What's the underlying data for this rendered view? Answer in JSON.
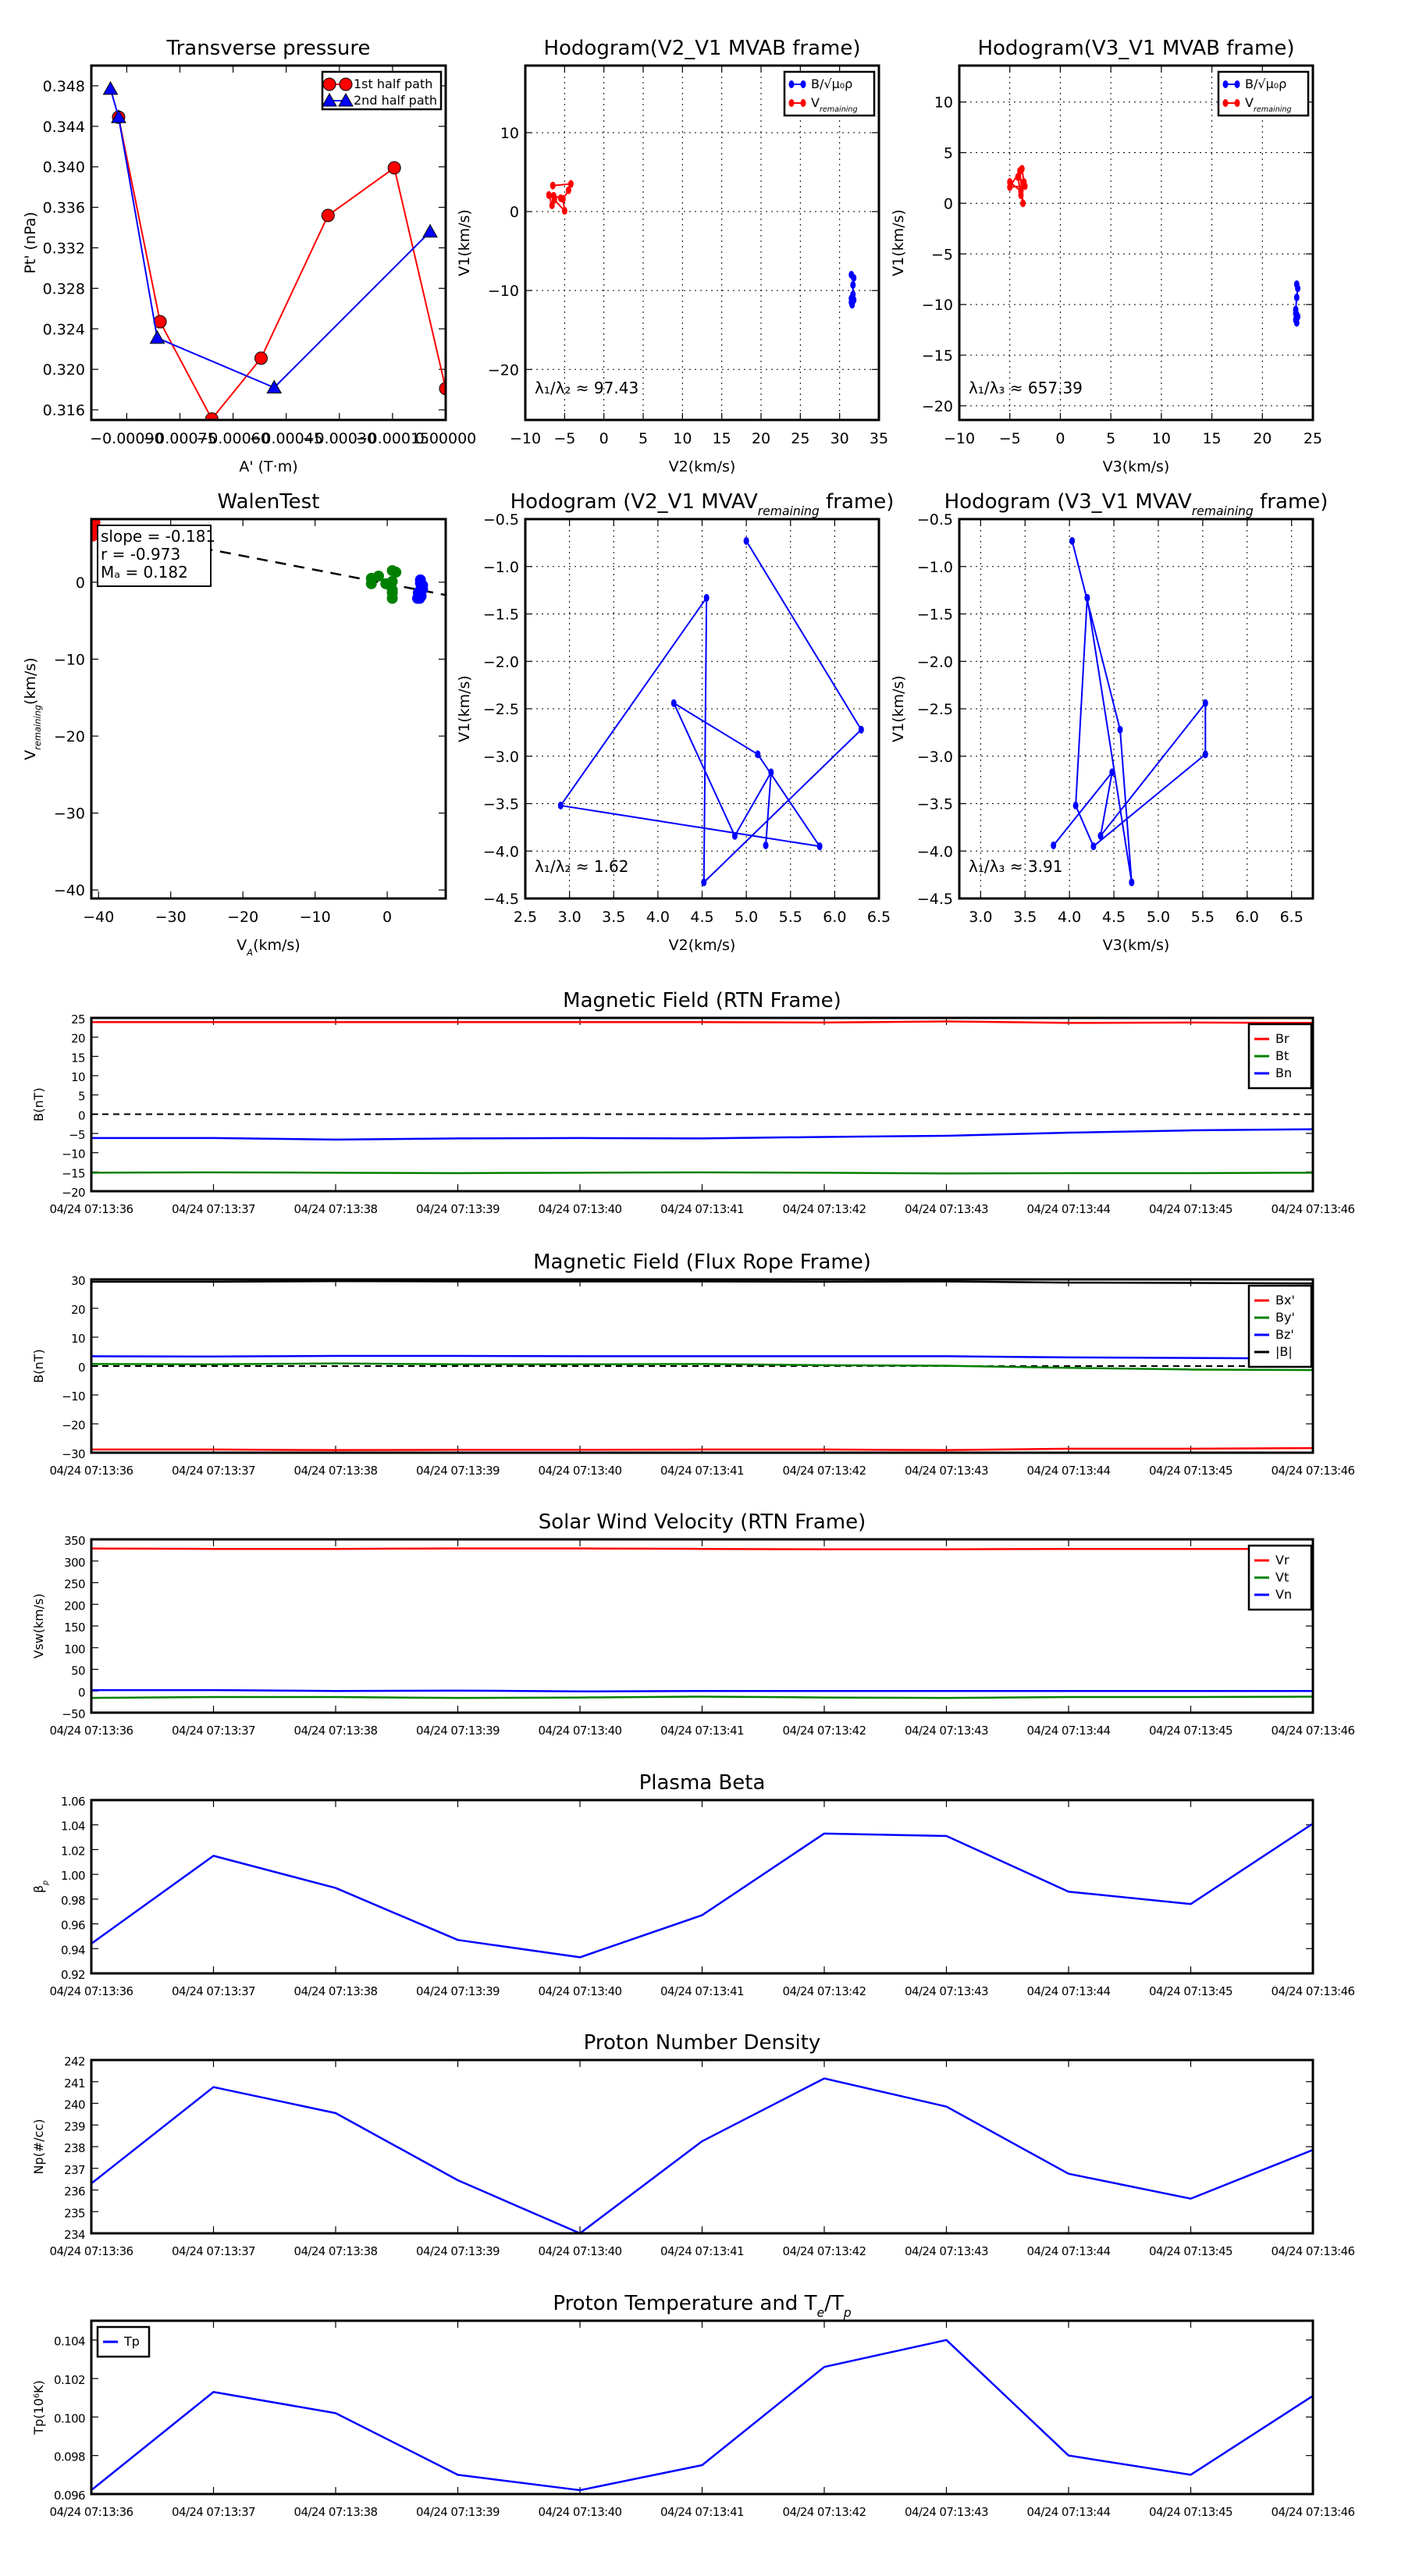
{
  "chart_data": [
    {
      "type": "line",
      "title": [
        {
          "t": "Transverse pressure"
        }
      ],
      "xlabel": [
        {
          "t": "A' (T·m)"
        }
      ],
      "ylabel": [
        {
          "t": "Pt' (nPa)"
        }
      ],
      "xlim": [
        -0.001,
        0.0
      ],
      "ylim": [
        0.315,
        0.35
      ],
      "xticks": [
        "−0.00090",
        "−0.00075",
        "−0.00060",
        "−0.00045",
        "−0.00030",
        "−0.00015",
        "0.00000"
      ],
      "yticks": [
        "0.316",
        "0.320",
        "0.324",
        "0.328",
        "0.332",
        "0.336",
        "0.340",
        "0.344",
        "0.348"
      ],
      "grid": false,
      "legend": {
        "loc": "upper right"
      },
      "series": [
        {
          "name": "1st half path",
          "color": "#ff0000",
          "marker": "circle",
          "x": [
            -0.000923,
            -0.000806,
            -0.00066,
            -0.000521,
            -0.000332,
            -0.000145,
            0.0
          ],
          "y": [
            0.3449,
            0.3247,
            0.3151,
            0.3211,
            0.3352,
            0.3399,
            0.3181
          ]
        },
        {
          "name": "2nd half path",
          "color": "#0000ff",
          "marker": "triangle",
          "x": [
            -0.000946,
            -0.000923,
            -0.000814,
            -0.000484,
            -4.4e-05
          ],
          "y": [
            0.3477,
            0.3449,
            0.3231,
            0.3182,
            0.3336
          ]
        }
      ]
    },
    {
      "type": "line",
      "title": [
        {
          "t": "Hodogram(V2_V1 MVAB frame)"
        }
      ],
      "xlabel": [
        {
          "t": "V2(km/s)"
        }
      ],
      "ylabel": [
        {
          "t": "V1(km/s)"
        }
      ],
      "xlim": [
        -10,
        35
      ],
      "ylim": [
        -26.4,
        18.5
      ],
      "xticks": [
        "−10",
        "−5",
        "0",
        "5",
        "10",
        "15",
        "20",
        "25",
        "30",
        "35"
      ],
      "yticks": [
        "−20",
        "−10",
        "0",
        "10"
      ],
      "grid": true,
      "legend": {
        "loc": "upper right"
      },
      "annotation": "λ₁/λ₂ ≈ 97.43",
      "series": [
        {
          "name": [
            {
              "t": "B/√μ₀ρ"
            }
          ],
          "color": "#0000ff",
          "marker": "dot",
          "x": [
            31.5,
            31.8,
            31.7,
            31.7,
            31.5,
            31.5,
            31.6,
            31.8,
            31.6,
            31.7
          ],
          "y": [
            -8.0,
            -8.4,
            -9.3,
            -10.5,
            -11.0,
            -11.5,
            -11.8,
            -11.2,
            -10.9,
            -11.3
          ]
        },
        {
          "name": [
            {
              "t": "V"
            },
            {
              "t": "remaining",
              "sub": true
            }
          ],
          "color": "#ff0000",
          "marker": "dot",
          "x": [
            -6.5,
            -4.2,
            -4.5,
            -5.2,
            -5.0,
            -6.3,
            -7.0,
            -6.6,
            -6.4,
            -5.5
          ],
          "y": [
            3.3,
            3.5,
            2.7,
            1.6,
            0.1,
            1.5,
            2.1,
            0.8,
            2.0,
            1.7
          ]
        }
      ]
    },
    {
      "type": "line",
      "title": [
        {
          "t": "Hodogram(V3_V1 MVAB frame)"
        }
      ],
      "xlabel": [
        {
          "t": "V3(km/s)"
        }
      ],
      "ylabel": [
        {
          "t": "V1(km/s)"
        }
      ],
      "xlim": [
        -10,
        25
      ],
      "ylim": [
        -21.4,
        13.6
      ],
      "xticks": [
        "−10",
        "−5",
        "0",
        "5",
        "10",
        "15",
        "20",
        "25"
      ],
      "yticks": [
        "−20",
        "−15",
        "−10",
        "−5",
        "0",
        "5",
        "10"
      ],
      "grid": true,
      "legend": {
        "loc": "upper right"
      },
      "annotation": "λ₁/λ₃ ≈ 657.39",
      "series": [
        {
          "name": [
            {
              "t": "B/√μ₀ρ"
            }
          ],
          "color": "#0000ff",
          "marker": "dot",
          "x": [
            23.4,
            23.5,
            23.4,
            23.3,
            23.4,
            23.3,
            23.4,
            23.5,
            23.3,
            23.4
          ],
          "y": [
            -8.0,
            -8.4,
            -9.3,
            -10.5,
            -11.0,
            -11.5,
            -11.8,
            -11.2,
            -10.9,
            -11.3
          ]
        },
        {
          "name": [
            {
              "t": "V"
            },
            {
              "t": "remaining",
              "sub": true
            }
          ],
          "color": "#ff0000",
          "marker": "dot",
          "x": [
            -3.8,
            -3.6,
            -3.9,
            -4.2,
            -3.5,
            -5.0,
            -4.0,
            -3.7,
            -3.9,
            -5.0
          ],
          "y": [
            3.4,
            2.1,
            0.8,
            2.6,
            1.7,
            1.6,
            3.2,
            0.0,
            1.2,
            2.1
          ]
        }
      ]
    },
    {
      "type": "scatter",
      "title": [
        {
          "t": "WalenTest"
        }
      ],
      "xlabel": [
        {
          "t": "V"
        },
        {
          "t": "A",
          "sub": true
        },
        {
          "t": "(km/s)"
        }
      ],
      "ylabel": [
        {
          "t": "V"
        },
        {
          "t": "remaining",
          "sub": true
        },
        {
          "t": "(km/s)"
        }
      ],
      "xlim": [
        -41.0,
        8.1
      ],
      "ylim": [
        -41.1,
        8.2
      ],
      "xticks": [
        "−40",
        "−30",
        "−20",
        "−10",
        "0"
      ],
      "yticks": [
        "−40",
        "−30",
        "−20",
        "−10",
        "0"
      ],
      "grid": false,
      "textbox": [
        "slope = -0.181",
        "r = -0.973",
        "Mₐ = 0.182"
      ],
      "fit": {
        "slope": -0.181,
        "intercept": -0.2
      },
      "series": [
        {
          "name": "red",
          "color": "#ff0000",
          "marker": "bigdot",
          "x": [
            -40.6,
            -40.3,
            -40.8,
            -40.5
          ],
          "y": [
            7.5,
            6.5,
            6.0,
            7.8
          ]
        },
        {
          "name": "green",
          "color": "#008000",
          "marker": "bigdot",
          "x": [
            -2.2,
            -1.2,
            -2.2,
            0.7,
            -0.2,
            0.7,
            1.2,
            0.7,
            0.7,
            0.7
          ],
          "y": [
            0.5,
            0.8,
            -0.2,
            1.5,
            -0.2,
            0.1,
            1.3,
            -1.0,
            -2.1,
            -1.4
          ]
        },
        {
          "name": "blue",
          "color": "#0000ff",
          "marker": "bigdot",
          "x": [
            4.6,
            4.6,
            4.3,
            4.9,
            4.6,
            4.5,
            4.9,
            4.2,
            4.7
          ],
          "y": [
            0.3,
            -0.1,
            -1.4,
            -0.4,
            -1.0,
            -2.1,
            -0.9,
            -2.1,
            -1.8
          ]
        }
      ]
    },
    {
      "type": "line",
      "title": [
        {
          "t": "Hodogram (V2_V1 MVAV"
        },
        {
          "t": "remaining",
          "sub": true
        },
        {
          "t": " frame)"
        }
      ],
      "xlabel": [
        {
          "t": "V2(km/s)"
        }
      ],
      "ylabel": [
        {
          "t": "V1(km/s)"
        }
      ],
      "xlim": [
        2.5,
        6.5
      ],
      "ylim": [
        -4.5,
        -0.5
      ],
      "xticks": [
        "2.5",
        "3.0",
        "3.5",
        "4.0",
        "4.5",
        "5.0",
        "5.5",
        "6.0",
        "6.5"
      ],
      "yticks": [
        "−4.5",
        "−4.0",
        "−3.5",
        "−3.0",
        "−2.5",
        "−2.0",
        "−1.5",
        "−1.0",
        "−0.5"
      ],
      "grid": true,
      "annotation": "λ₁/λ₂ ≈ 1.62",
      "series": [
        {
          "name": "V",
          "color": "#0000ff",
          "marker": "dot",
          "x": [
            5.0,
            6.3,
            4.52,
            4.55,
            2.9,
            5.83,
            5.13,
            4.18,
            4.87,
            5.28,
            5.22
          ],
          "y": [
            -0.73,
            -2.72,
            -4.33,
            -1.33,
            -3.52,
            -3.95,
            -2.98,
            -2.44,
            -3.84,
            -3.17,
            -3.94
          ]
        }
      ]
    },
    {
      "type": "line",
      "title": [
        {
          "t": "Hodogram (V3_V1 MVAV"
        },
        {
          "t": "remaining",
          "sub": true
        },
        {
          "t": " frame)"
        }
      ],
      "xlabel": [
        {
          "t": "V3(km/s)"
        }
      ],
      "ylabel": [
        {
          "t": "V1(km/s)"
        }
      ],
      "xlim": [
        2.76,
        6.74
      ],
      "ylim": [
        -4.5,
        -0.5
      ],
      "xticks": [
        "3.0",
        "3.5",
        "4.0",
        "4.5",
        "5.0",
        "5.5",
        "6.0",
        "6.5"
      ],
      "yticks": [
        "−4.5",
        "−4.0",
        "−3.5",
        "−3.0",
        "−2.5",
        "−2.0",
        "−1.5",
        "−1.0",
        "−0.5"
      ],
      "grid": true,
      "annotation": "λ₁/λ₃ ≈ 3.91",
      "series": [
        {
          "name": "V",
          "color": "#0000ff",
          "marker": "dot",
          "x": [
            4.03,
            4.57,
            4.7,
            4.2,
            4.07,
            4.27,
            5.53,
            5.53,
            4.35,
            4.48,
            3.82
          ],
          "y": [
            -0.73,
            -2.72,
            -4.33,
            -1.33,
            -3.52,
            -3.95,
            -2.98,
            -2.44,
            -3.84,
            -3.17,
            -3.94
          ]
        }
      ]
    },
    {
      "type": "line",
      "title": [
        {
          "t": "Magnetic Field (RTN Frame)"
        }
      ],
      "ylabel": [
        {
          "t": "B(nT)"
        }
      ],
      "categories": [
        "04/24 07:13:36",
        "04/24 07:13:37",
        "04/24 07:13:38",
        "04/24 07:13:39",
        "04/24 07:13:40",
        "04/24 07:13:41",
        "04/24 07:13:42",
        "04/24 07:13:43",
        "04/24 07:13:44",
        "04/24 07:13:45",
        "04/24 07:13:46"
      ],
      "ylim": [
        -20,
        25
      ],
      "yticks": [
        "−20",
        "−15",
        "−10",
        "−5",
        "0",
        "5",
        "10",
        "15",
        "20",
        "25"
      ],
      "zero_line": true,
      "legend": {
        "loc": "upper right"
      },
      "series": [
        {
          "name": "Br",
          "color": "#ff0000",
          "y": [
            23.9,
            23.9,
            23.9,
            23.9,
            23.9,
            23.9,
            23.8,
            24.1,
            23.7,
            23.8,
            23.7
          ]
        },
        {
          "name": "Bt",
          "color": "#008000",
          "y": [
            -15.2,
            -15.1,
            -15.2,
            -15.3,
            -15.2,
            -15.1,
            -15.2,
            -15.4,
            -15.3,
            -15.3,
            -15.2
          ]
        },
        {
          "name": "Bn",
          "color": "#0000ff",
          "y": [
            -6.2,
            -6.2,
            -6.6,
            -6.3,
            -6.2,
            -6.3,
            -5.9,
            -5.6,
            -4.8,
            -4.2,
            -3.9
          ]
        }
      ]
    },
    {
      "type": "line",
      "title": [
        {
          "t": "Magnetic Field (Flux Rope Frame)"
        }
      ],
      "ylabel": [
        {
          "t": "B(nT)"
        }
      ],
      "categories": [
        "04/24 07:13:36",
        "04/24 07:13:37",
        "04/24 07:13:38",
        "04/24 07:13:39",
        "04/24 07:13:40",
        "04/24 07:13:41",
        "04/24 07:13:42",
        "04/24 07:13:43",
        "04/24 07:13:44",
        "04/24 07:13:45",
        "04/24 07:13:46"
      ],
      "ylim": [
        -30,
        30
      ],
      "yticks": [
        "−30",
        "−20",
        "−10",
        "0",
        "10",
        "20",
        "30"
      ],
      "zero_line": true,
      "legend": {
        "loc": "upper right"
      },
      "series": [
        {
          "name": "Bx'",
          "color": "#ff0000",
          "y": [
            -28.9,
            -28.9,
            -29.1,
            -29.0,
            -29.0,
            -28.9,
            -28.9,
            -29.1,
            -28.6,
            -28.6,
            -28.4
          ]
        },
        {
          "name": "By'",
          "color": "#008000",
          "y": [
            0.7,
            0.6,
            0.9,
            0.6,
            0.6,
            0.7,
            0.3,
            0.1,
            -0.6,
            -1.2,
            -1.4
          ]
        },
        {
          "name": "Bz'",
          "color": "#0000ff",
          "y": [
            3.4,
            3.3,
            3.5,
            3.5,
            3.4,
            3.4,
            3.4,
            3.4,
            3.0,
            2.8,
            2.6
          ]
        },
        {
          "name": "|B|",
          "color": "#000000",
          "y": [
            29.2,
            29.2,
            29.4,
            29.3,
            29.3,
            29.3,
            29.2,
            29.3,
            28.9,
            28.8,
            28.6
          ]
        }
      ]
    },
    {
      "type": "line",
      "title": [
        {
          "t": "Solar Wind Velocity (RTN Frame)"
        }
      ],
      "ylabel": [
        {
          "t": "Vsw(km/s)"
        }
      ],
      "categories": [
        "04/24 07:13:36",
        "04/24 07:13:37",
        "04/24 07:13:38",
        "04/24 07:13:39",
        "04/24 07:13:40",
        "04/24 07:13:41",
        "04/24 07:13:42",
        "04/24 07:13:43",
        "04/24 07:13:44",
        "04/24 07:13:45",
        "04/24 07:13:46"
      ],
      "ylim": [
        -50,
        350
      ],
      "yticks": [
        "−50",
        "0",
        "50",
        "100",
        "150",
        "200",
        "250",
        "300",
        "350"
      ],
      "legend": {
        "loc": "upper right"
      },
      "series": [
        {
          "name": "Vr",
          "color": "#ff0000",
          "y": [
            329,
            328,
            328,
            329,
            329,
            328,
            327,
            327,
            328,
            328,
            328
          ]
        },
        {
          "name": "Vt",
          "color": "#008000",
          "y": [
            -16,
            -14,
            -14,
            -16,
            -15,
            -13,
            -15,
            -16,
            -14,
            -14,
            -13
          ]
        },
        {
          "name": "Vn",
          "color": "#0000ff",
          "y": [
            2,
            2,
            0,
            1,
            -1,
            0,
            0,
            0,
            0,
            0,
            0
          ]
        }
      ]
    },
    {
      "type": "line",
      "title": [
        {
          "t": "Plasma Beta"
        }
      ],
      "ylabel": [
        {
          "t": "β"
        },
        {
          "t": "p",
          "sub": true
        }
      ],
      "categories": [
        "04/24 07:13:36",
        "04/24 07:13:37",
        "04/24 07:13:38",
        "04/24 07:13:39",
        "04/24 07:13:40",
        "04/24 07:13:41",
        "04/24 07:13:42",
        "04/24 07:13:43",
        "04/24 07:13:44",
        "04/24 07:13:45",
        "04/24 07:13:46"
      ],
      "ylim": [
        0.92,
        1.06
      ],
      "yticks": [
        "0.92",
        "0.94",
        "0.96",
        "0.98",
        "1.00",
        "1.02",
        "1.04",
        "1.06"
      ],
      "series": [
        {
          "name": "beta",
          "color": "#0000ff",
          "y": [
            0.944,
            1.015,
            0.989,
            0.947,
            0.933,
            0.967,
            1.033,
            1.031,
            0.986,
            0.976,
            1.041
          ]
        }
      ]
    },
    {
      "type": "line",
      "title": [
        {
          "t": "Proton Number Density"
        }
      ],
      "ylabel": [
        {
          "t": "Np(#/cc)"
        }
      ],
      "categories": [
        "04/24 07:13:36",
        "04/24 07:13:37",
        "04/24 07:13:38",
        "04/24 07:13:39",
        "04/24 07:13:40",
        "04/24 07:13:41",
        "04/24 07:13:42",
        "04/24 07:13:43",
        "04/24 07:13:44",
        "04/24 07:13:45",
        "04/24 07:13:46"
      ],
      "ylim": [
        234,
        242
      ],
      "yticks": [
        "234",
        "235",
        "236",
        "237",
        "238",
        "239",
        "240",
        "241",
        "242"
      ],
      "series": [
        {
          "name": "Np",
          "color": "#0000ff",
          "y": [
            236.3,
            240.75,
            239.55,
            236.45,
            234.0,
            238.25,
            241.15,
            239.85,
            236.75,
            235.6,
            237.85
          ]
        }
      ]
    },
    {
      "type": "line",
      "title": [
        {
          "t": "Proton Temperature and T"
        },
        {
          "t": "e",
          "sub": true
        },
        {
          "t": "/T"
        },
        {
          "t": "p",
          "sub": true
        }
      ],
      "ylabel": [
        {
          "t": "Tp(10"
        },
        {
          "t": "6",
          "sup": true
        },
        {
          "t": "K)"
        }
      ],
      "categories": [
        "04/24 07:13:36",
        "04/24 07:13:37",
        "04/24 07:13:38",
        "04/24 07:13:39",
        "04/24 07:13:40",
        "04/24 07:13:41",
        "04/24 07:13:42",
        "04/24 07:13:43",
        "04/24 07:13:44",
        "04/24 07:13:45",
        "04/24 07:13:46"
      ],
      "ylim": [
        0.096,
        0.105
      ],
      "yticks": [
        "0.096",
        "0.098",
        "0.100",
        "0.102",
        "0.104"
      ],
      "legend": {
        "loc": "upper left"
      },
      "series": [
        {
          "name": "Tp",
          "color": "#0000ff",
          "y": [
            0.0962,
            0.1013,
            0.1002,
            0.097,
            0.0962,
            0.0975,
            0.1026,
            0.104,
            0.098,
            0.097,
            0.1011
          ]
        }
      ]
    }
  ]
}
